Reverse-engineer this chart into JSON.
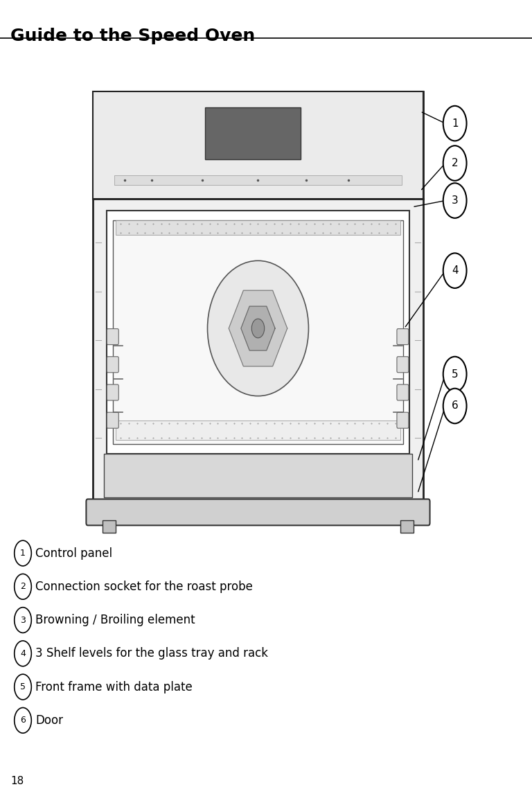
{
  "title": "Guide to the Speed Oven",
  "page_number": "18",
  "labels": [
    {
      "num": "1",
      "text": "Control panel"
    },
    {
      "num": "2",
      "text": "Connection socket for the roast probe"
    },
    {
      "num": "3",
      "text": "Browning / Broiling element"
    },
    {
      "num": "4",
      "text": "3 Shelf levels for the glass tray and rack"
    },
    {
      "num": "5",
      "text": "Front frame with data plate"
    },
    {
      "num": "6",
      "text": "Door"
    }
  ],
  "bg_color": "#ffffff",
  "line_color": "#000000",
  "circle_bg": "#ffffff"
}
